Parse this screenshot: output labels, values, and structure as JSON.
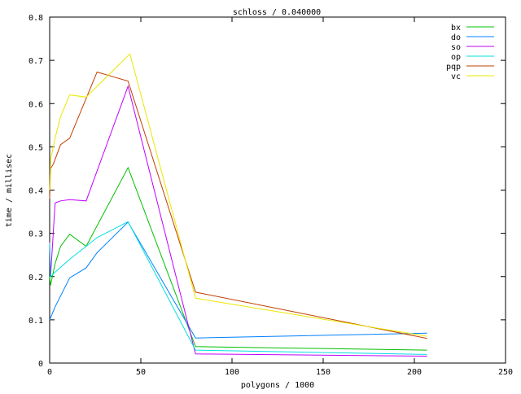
{
  "chart_data": {
    "type": "line",
    "title": "schloss / 0.040000",
    "xlabel": "polygons / 1000",
    "ylabel": "time / millisec",
    "xlim": [
      0,
      250
    ],
    "ylim": [
      0,
      0.8
    ],
    "xticks": [
      "0",
      "50",
      "100",
      "150",
      "200",
      "250"
    ],
    "yticks": [
      "0",
      "0.1",
      "0.2",
      "0.3",
      "0.4",
      "0.5",
      "0.6",
      "0.7",
      "0.8"
    ],
    "grid": false,
    "legend_position": "top-right",
    "series": [
      {
        "name": "bx",
        "color": "#00c000",
        "x": [
          0,
          0.5,
          3,
          6,
          11,
          20,
          43,
          80,
          207
        ],
        "y": [
          0.2,
          0.18,
          0.23,
          0.27,
          0.298,
          0.27,
          0.452,
          0.038,
          0.03
        ]
      },
      {
        "name": "do",
        "color": "#0080ff",
        "x": [
          0,
          3,
          11,
          20,
          26,
          43,
          80,
          207
        ],
        "y": [
          0.1,
          0.13,
          0.197,
          0.22,
          0.255,
          0.326,
          0.058,
          0.069
        ]
      },
      {
        "name": "so",
        "color": "#c000ff",
        "x": [
          0,
          0.5,
          3,
          6,
          11,
          20,
          43,
          80,
          207
        ],
        "y": [
          0.28,
          0.2,
          0.37,
          0.375,
          0.378,
          0.375,
          0.64,
          0.021,
          0.016
        ]
      },
      {
        "name": "op",
        "color": "#00e0e0",
        "x": [
          0,
          0.5,
          3,
          11,
          20,
          26,
          43,
          80,
          207
        ],
        "y": [
          0.277,
          0.2,
          0.21,
          0.24,
          0.27,
          0.29,
          0.327,
          0.03,
          0.02
        ]
      },
      {
        "name": "pqp",
        "color": "#c04000",
        "x": [
          0,
          0.5,
          2,
          6,
          11,
          26,
          43,
          80,
          207
        ],
        "y": [
          0.38,
          0.45,
          0.46,
          0.505,
          0.52,
          0.673,
          0.652,
          0.164,
          0.057
        ]
      },
      {
        "name": "vc",
        "color": "#e8e800",
        "x": [
          0,
          0.5,
          3,
          6,
          11,
          20,
          44,
          80,
          207
        ],
        "y": [
          0.4,
          0.47,
          0.52,
          0.57,
          0.62,
          0.615,
          0.715,
          0.15,
          0.062
        ]
      }
    ]
  }
}
